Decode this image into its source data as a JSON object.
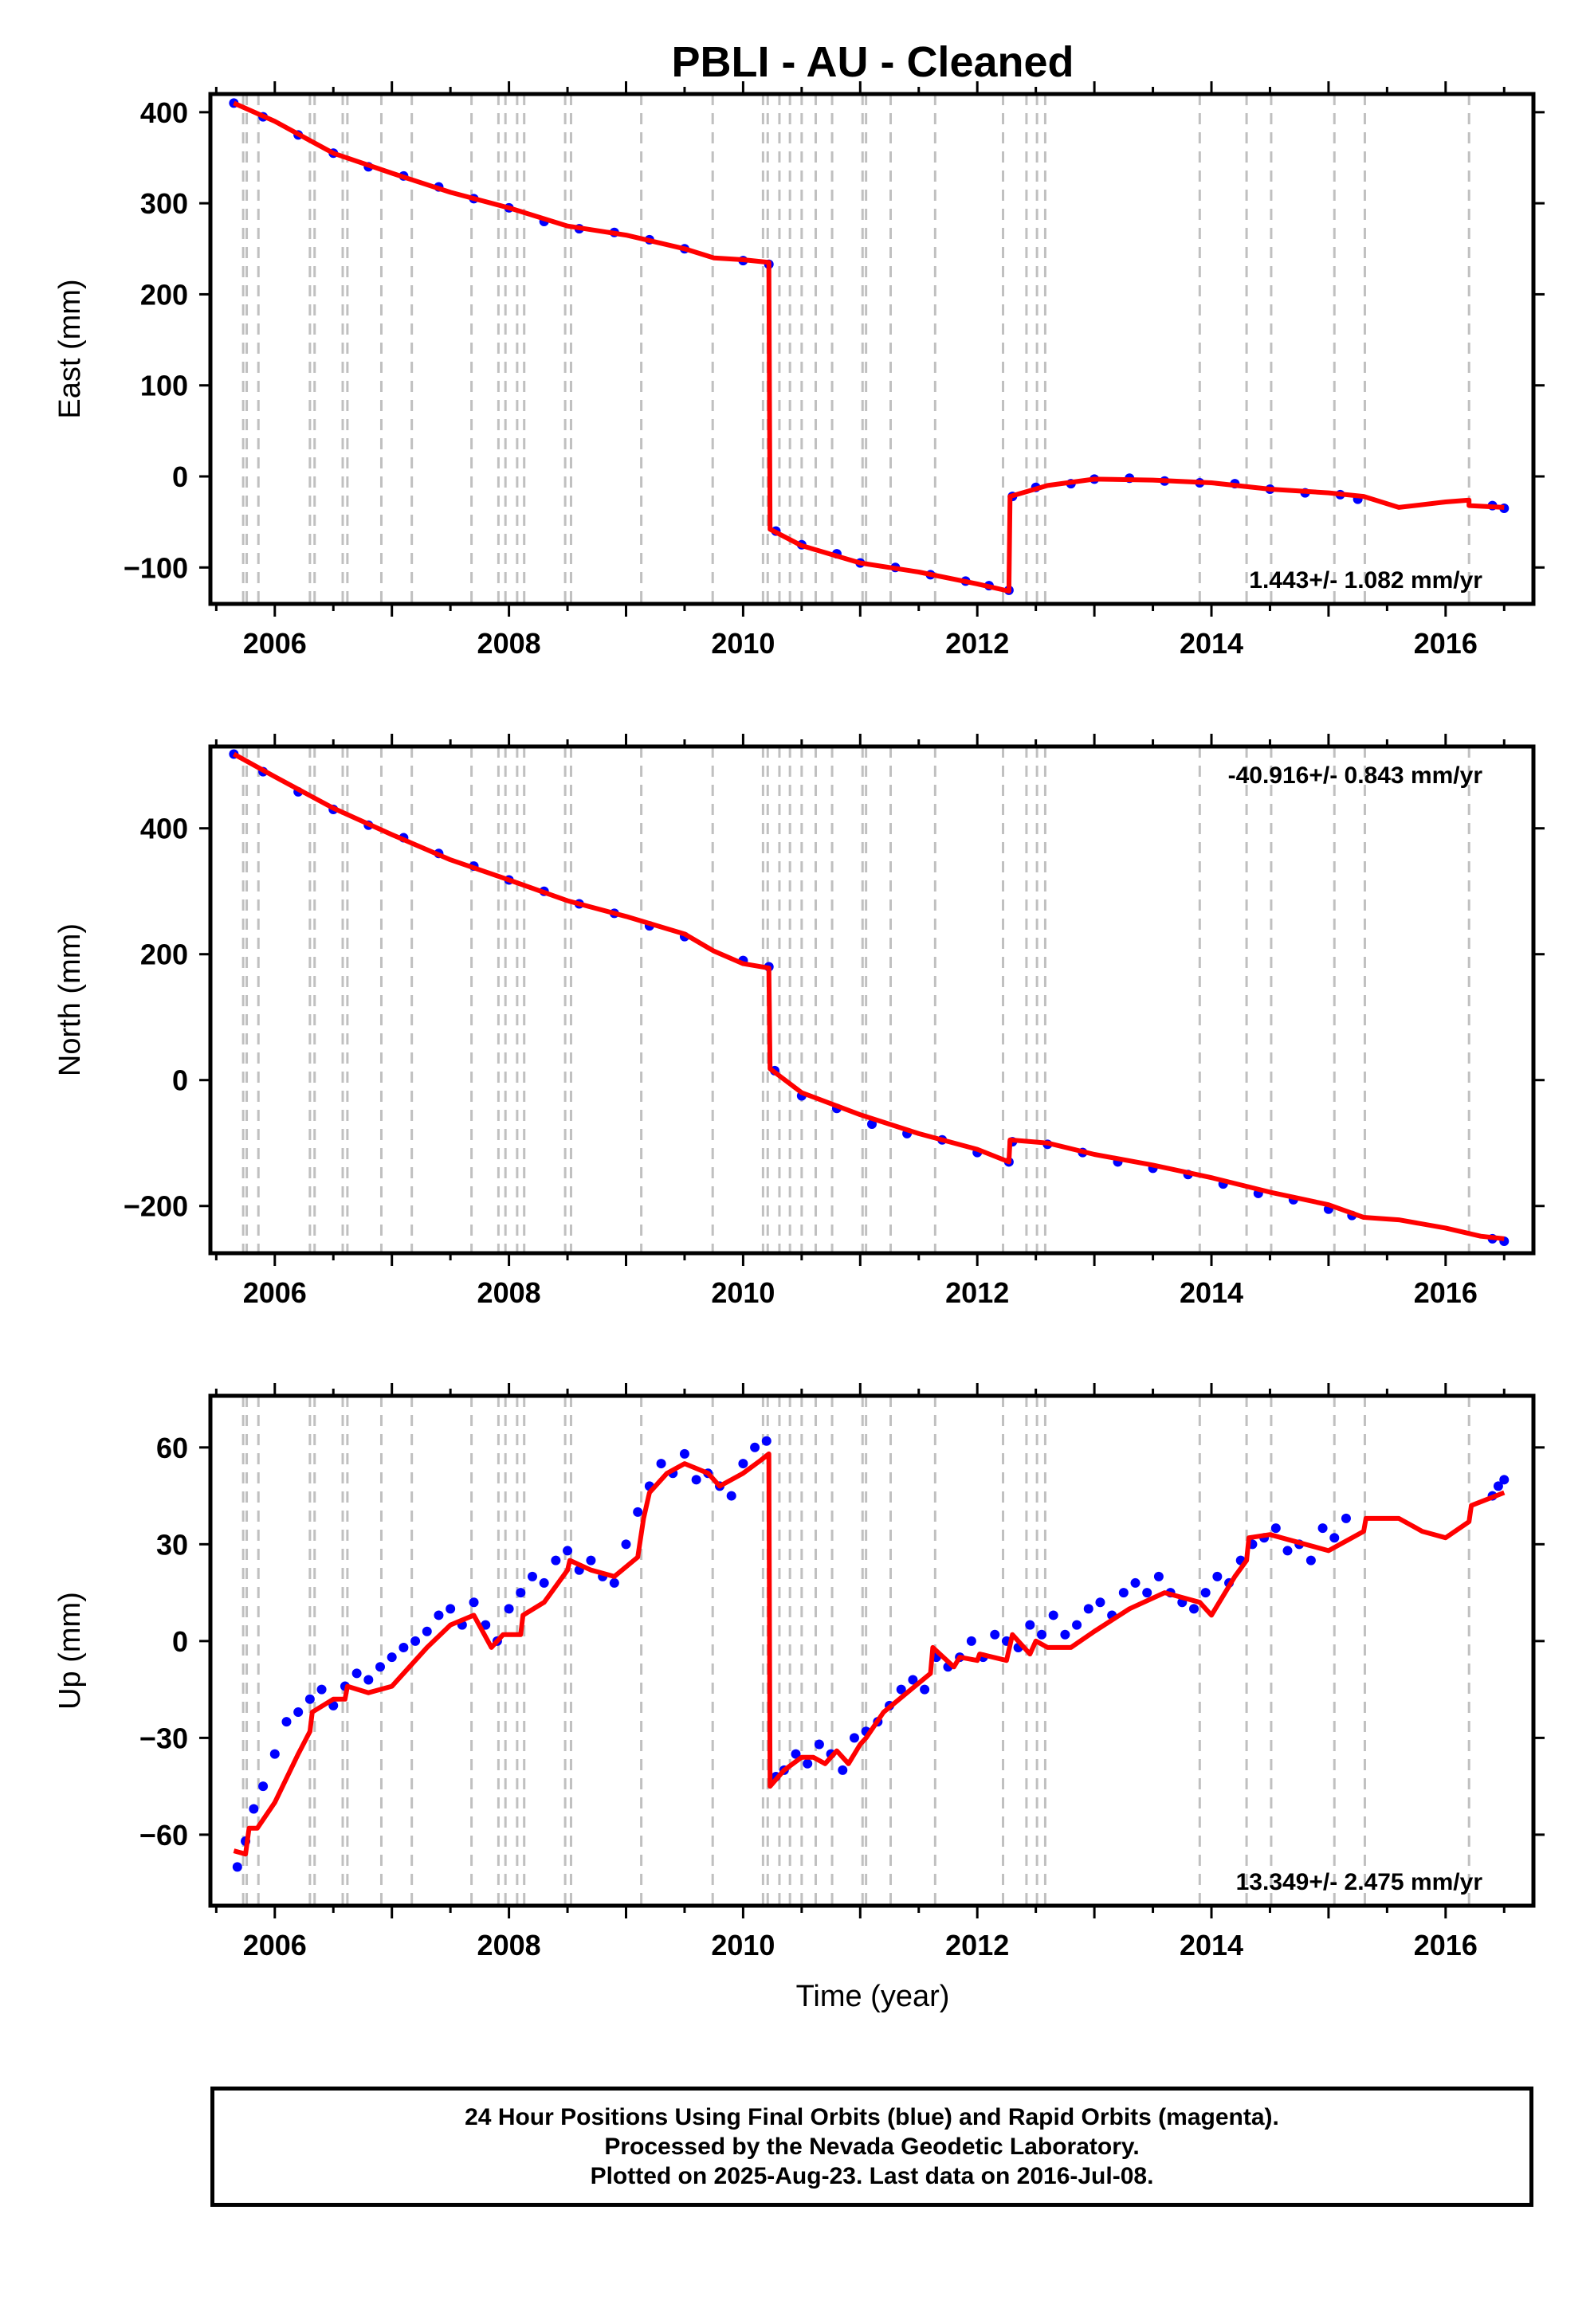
{
  "title": "PBLI  - AU - Cleaned",
  "xlabel": "Time (year)",
  "caption": {
    "line1": "24 Hour Positions Using Final Orbits (blue) and Rapid Orbits (magenta).",
    "line2": "Processed by the Nevada Geodetic Laboratory.",
    "line3": "Plotted on 2025-Aug-23. Last data on 2016-Jul-08."
  },
  "colors": {
    "data": "#0000ff",
    "model": "#ff0000",
    "gridline": "#c0c0c0",
    "frame": "#000000"
  },
  "chart_data": [
    {
      "type": "scatter",
      "ylabel": "East (mm)",
      "xlim": [
        2005.45,
        2016.75
      ],
      "ylim": [
        -140,
        420
      ],
      "yticks": [
        -100,
        0,
        100,
        200,
        300,
        400
      ],
      "ytick_labels": [
        "−100",
        "0",
        "100",
        "200",
        "300",
        "400"
      ],
      "xticks": [
        2006,
        2008,
        2010,
        2012,
        2014,
        2016
      ],
      "rate_label": "1.443+/- 1.082 mm/yr",
      "rate_position": "bottom-right",
      "series": [
        {
          "kind": "points",
          "x": [
            2005.65,
            2005.9,
            2006.2,
            2006.5,
            2006.8,
            2007.1,
            2007.4,
            2007.7,
            2008.0,
            2008.3,
            2008.6,
            2008.9,
            2009.2,
            2009.5,
            2010.0,
            2010.22,
            2010.28,
            2010.5,
            2010.8,
            2011.0,
            2011.3,
            2011.6,
            2011.9,
            2012.1,
            2012.27,
            2012.3,
            2012.5,
            2012.8,
            2013.0,
            2013.3,
            2013.6,
            2013.9,
            2014.2,
            2014.5,
            2014.8,
            2015.1,
            2015.25,
            2016.4,
            2016.5
          ],
          "y": [
            410,
            395,
            375,
            355,
            340,
            330,
            318,
            305,
            295,
            280,
            272,
            268,
            260,
            250,
            237,
            233,
            -60,
            -75,
            -85,
            -95,
            -100,
            -108,
            -115,
            -120,
            -125,
            -22,
            -12,
            -8,
            -3,
            -2,
            -5,
            -7,
            -8,
            -14,
            -18,
            -20,
            -25,
            -32,
            -35
          ]
        },
        {
          "kind": "model",
          "x": [
            2005.65,
            2006.0,
            2006.5,
            2007.0,
            2007.5,
            2008.0,
            2008.5,
            2009.0,
            2009.5,
            2009.75,
            2010.0,
            2010.22,
            2010.23,
            2010.5,
            2011.0,
            2011.5,
            2012.0,
            2012.27,
            2012.28,
            2012.6,
            2013.0,
            2013.5,
            2014.0,
            2014.5,
            2015.0,
            2015.3,
            2015.6,
            2016.0,
            2016.2,
            2016.2,
            2016.5
          ],
          "y": [
            410,
            390,
            355,
            333,
            312,
            295,
            275,
            265,
            250,
            240,
            238,
            235,
            -58,
            -76,
            -95,
            -105,
            -118,
            -126,
            -22,
            -10,
            -3,
            -4,
            -7,
            -14,
            -18,
            -22,
            -34,
            -28,
            -26,
            -32,
            -34
          ]
        }
      ]
    },
    {
      "type": "scatter",
      "ylabel": "North (mm)",
      "xlim": [
        2005.45,
        2016.75
      ],
      "ylim": [
        -275,
        530
      ],
      "yticks": [
        -200,
        0,
        200,
        400
      ],
      "ytick_labels": [
        "−200",
        "0",
        "200",
        "400"
      ],
      "xticks": [
        2006,
        2008,
        2010,
        2012,
        2014,
        2016
      ],
      "rate_label": "-40.916+/- 0.843 mm/yr",
      "rate_position": "top-right",
      "series": [
        {
          "kind": "points",
          "x": [
            2005.65,
            2005.9,
            2006.2,
            2006.5,
            2006.8,
            2007.1,
            2007.4,
            2007.7,
            2008.0,
            2008.3,
            2008.6,
            2008.9,
            2009.2,
            2009.5,
            2010.0,
            2010.22,
            2010.27,
            2010.5,
            2010.8,
            2011.1,
            2011.4,
            2011.7,
            2012.0,
            2012.27,
            2012.3,
            2012.6,
            2012.9,
            2013.2,
            2013.5,
            2013.8,
            2014.1,
            2014.4,
            2014.7,
            2015.0,
            2015.2,
            2016.4,
            2016.5
          ],
          "y": [
            518,
            490,
            458,
            430,
            405,
            385,
            360,
            340,
            318,
            300,
            280,
            265,
            245,
            228,
            190,
            180,
            15,
            -25,
            -45,
            -70,
            -85,
            -95,
            -115,
            -130,
            -98,
            -102,
            -115,
            -130,
            -140,
            -150,
            -165,
            -180,
            -190,
            -205,
            -215,
            -252,
            -256
          ]
        },
        {
          "kind": "model",
          "x": [
            2005.65,
            2006.0,
            2006.5,
            2007.0,
            2007.5,
            2008.0,
            2008.5,
            2009.0,
            2009.5,
            2009.75,
            2010.0,
            2010.22,
            2010.23,
            2010.5,
            2011.0,
            2011.5,
            2012.0,
            2012.27,
            2012.28,
            2012.6,
            2013.0,
            2013.5,
            2014.0,
            2014.5,
            2015.0,
            2015.3,
            2015.6,
            2016.0,
            2016.3,
            2016.5
          ],
          "y": [
            518,
            482,
            432,
            390,
            350,
            318,
            285,
            260,
            232,
            205,
            185,
            178,
            18,
            -20,
            -55,
            -85,
            -110,
            -130,
            -95,
            -100,
            -118,
            -135,
            -155,
            -178,
            -198,
            -218,
            -222,
            -235,
            -248,
            -252
          ]
        }
      ]
    },
    {
      "type": "scatter",
      "ylabel": "Up (mm)",
      "xlim": [
        2005.45,
        2016.75
      ],
      "ylim": [
        -82,
        76
      ],
      "yticks": [
        -60,
        -30,
        0,
        30,
        60
      ],
      "ytick_labels": [
        "−60",
        "−30",
        "0",
        "30",
        "60"
      ],
      "xticks": [
        2006,
        2008,
        2010,
        2012,
        2014,
        2016
      ],
      "rate_label": "13.349+/- 2.475 mm/yr",
      "rate_position": "bottom-right",
      "series": [
        {
          "kind": "points",
          "x": [
            2005.68,
            2005.75,
            2005.82,
            2005.9,
            2006.0,
            2006.1,
            2006.2,
            2006.3,
            2006.4,
            2006.5,
            2006.6,
            2006.7,
            2006.8,
            2006.9,
            2007.0,
            2007.1,
            2007.2,
            2007.3,
            2007.4,
            2007.5,
            2007.6,
            2007.7,
            2007.8,
            2007.9,
            2008.0,
            2008.1,
            2008.2,
            2008.3,
            2008.4,
            2008.5,
            2008.6,
            2008.7,
            2008.8,
            2008.9,
            2009.0,
            2009.1,
            2009.2,
            2009.3,
            2009.4,
            2009.5,
            2009.6,
            2009.7,
            2009.8,
            2009.9,
            2010.0,
            2010.1,
            2010.2,
            2010.28,
            2010.35,
            2010.45,
            2010.55,
            2010.65,
            2010.75,
            2010.85,
            2010.95,
            2011.05,
            2011.15,
            2011.25,
            2011.35,
            2011.45,
            2011.55,
            2011.65,
            2011.75,
            2011.85,
            2011.95,
            2012.05,
            2012.15,
            2012.25,
            2012.35,
            2012.45,
            2012.55,
            2012.65,
            2012.75,
            2012.85,
            2012.95,
            2013.05,
            2013.15,
            2013.25,
            2013.35,
            2013.45,
            2013.55,
            2013.65,
            2013.75,
            2013.85,
            2013.95,
            2014.05,
            2014.15,
            2014.25,
            2014.35,
            2014.45,
            2014.55,
            2014.65,
            2014.75,
            2014.85,
            2014.95,
            2015.05,
            2015.15,
            2016.4,
            2016.45,
            2016.5
          ],
          "y": [
            -70,
            -62,
            -52,
            -45,
            -35,
            -25,
            -22,
            -18,
            -15,
            -20,
            -14,
            -10,
            -12,
            -8,
            -5,
            -2,
            0,
            3,
            8,
            10,
            5,
            12,
            5,
            0,
            10,
            15,
            20,
            18,
            25,
            28,
            22,
            25,
            20,
            18,
            30,
            40,
            48,
            55,
            52,
            58,
            50,
            52,
            48,
            45,
            55,
            60,
            62,
            -42,
            -40,
            -35,
            -38,
            -32,
            -35,
            -40,
            -30,
            -28,
            -25,
            -20,
            -15,
            -12,
            -15,
            -5,
            -8,
            -5,
            0,
            -5,
            2,
            0,
            -2,
            5,
            2,
            8,
            2,
            5,
            10,
            12,
            8,
            15,
            18,
            15,
            20,
            15,
            12,
            10,
            15,
            20,
            18,
            25,
            30,
            32,
            35,
            28,
            30,
            25,
            35,
            32,
            38,
            45,
            48,
            50
          ]
        },
        {
          "kind": "model",
          "x": [
            2005.65,
            2005.75,
            2005.78,
            2005.85,
            2006.0,
            2006.2,
            2006.3,
            2006.32,
            2006.5,
            2006.6,
            2006.62,
            2006.8,
            2007.0,
            2007.3,
            2007.5,
            2007.7,
            2007.85,
            2007.95,
            2008.1,
            2008.12,
            2008.3,
            2008.5,
            2008.52,
            2008.7,
            2008.9,
            2009.1,
            2009.15,
            2009.2,
            2009.35,
            2009.5,
            2009.7,
            2009.8,
            2010.0,
            2010.15,
            2010.22,
            2010.23,
            2010.35,
            2010.5,
            2010.6,
            2010.7,
            2010.8,
            2010.9,
            2011.0,
            2011.05,
            2011.2,
            2011.4,
            2011.6,
            2011.62,
            2011.8,
            2011.85,
            2012.0,
            2012.02,
            2012.25,
            2012.3,
            2012.45,
            2012.5,
            2012.6,
            2012.8,
            2013.0,
            2013.3,
            2013.6,
            2013.9,
            2014.0,
            2014.2,
            2014.3,
            2014.32,
            2014.5,
            2014.8,
            2015.0,
            2015.2,
            2015.3,
            2015.32,
            2015.6,
            2015.8,
            2016.0,
            2016.2,
            2016.22,
            2016.5
          ],
          "y": [
            -65,
            -66,
            -58,
            -58,
            -50,
            -35,
            -28,
            -22,
            -18,
            -18,
            -14,
            -16,
            -14,
            -2,
            5,
            8,
            -2,
            2,
            2,
            8,
            12,
            22,
            25,
            22,
            20,
            26,
            38,
            46,
            52,
            55,
            52,
            48,
            52,
            56,
            58,
            -45,
            -40,
            -36,
            -36,
            -38,
            -34,
            -38,
            -32,
            -30,
            -22,
            -16,
            -10,
            -2,
            -8,
            -5,
            -6,
            -4,
            -6,
            2,
            -4,
            0,
            -2,
            -2,
            3,
            10,
            15,
            12,
            8,
            20,
            25,
            32,
            33,
            30,
            28,
            32,
            34,
            38,
            38,
            34,
            32,
            37,
            42,
            46
          ]
        }
      ]
    }
  ]
}
